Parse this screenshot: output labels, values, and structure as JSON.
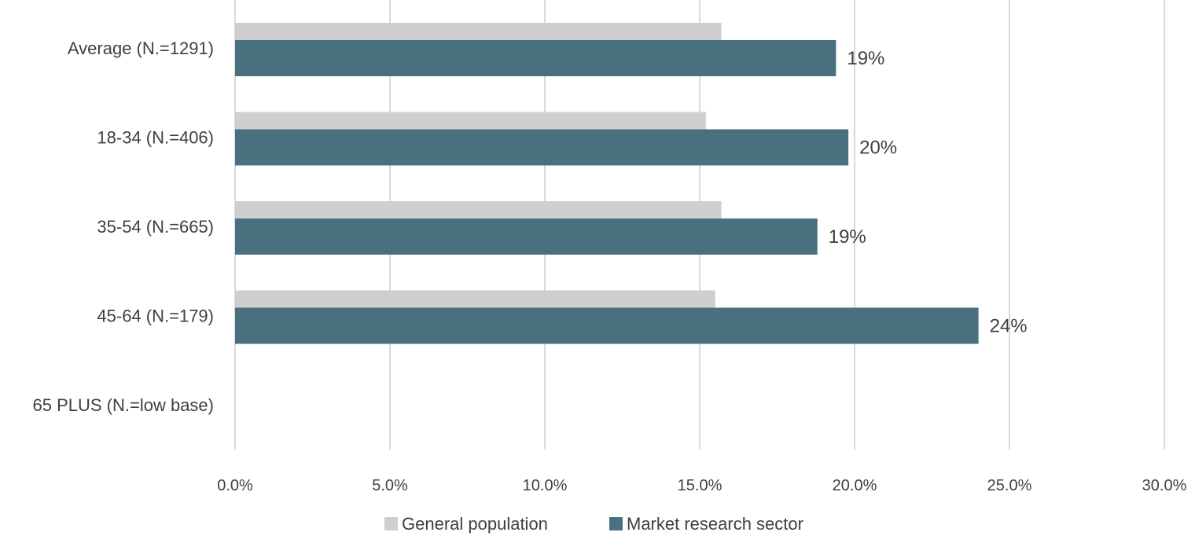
{
  "chart_data": {
    "type": "bar",
    "orientation": "horizontal",
    "title": "",
    "xlabel": "",
    "ylabel": "",
    "categories": [
      "Average (N.=1291)",
      "18-34 (N.=406)",
      "35-54 (N.=665)",
      "45-64 (N.=179)",
      "65 PLUS  (N.=low base)"
    ],
    "series": [
      {
        "name": "General population",
        "color": "#d0cece",
        "values": [
          15.7,
          15.2,
          15.7,
          15.5,
          null
        ],
        "labels": [
          "",
          "",
          "",
          "",
          ""
        ]
      },
      {
        "name": "Market research sector",
        "color": "#48707e",
        "values": [
          19.4,
          19.8,
          18.8,
          24.0,
          null
        ],
        "labels": [
          "19%",
          "20%",
          "19%",
          "24%",
          ""
        ]
      }
    ],
    "xlim": [
      0,
      30
    ],
    "xticks": [
      0,
      5,
      10,
      15,
      20,
      25,
      30
    ],
    "xtick_labels": [
      "0.0%",
      "5.0%",
      "10.0%",
      "15.0%",
      "20.0%",
      "25.0%",
      "30.0%"
    ],
    "grid": true,
    "legend_position": "bottom"
  }
}
